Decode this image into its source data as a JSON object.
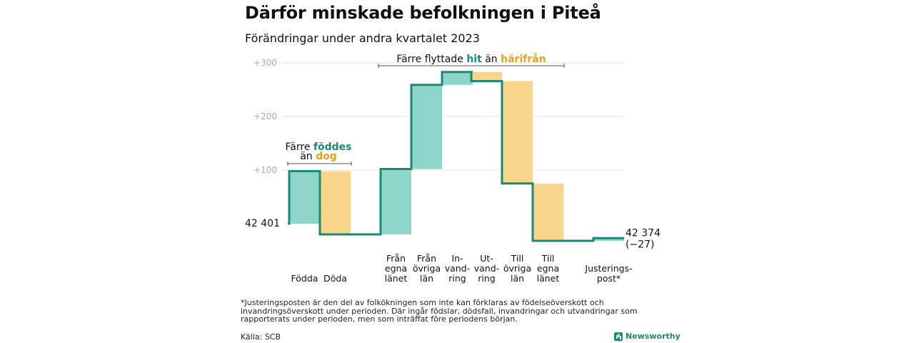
{
  "title": "Därför minskade befolkningen i Piteå",
  "subtitle": "Förändringar under andra kvartalet 2023",
  "colors": {
    "increase": "#8dd5c9",
    "decrease": "#f9d58c",
    "line": "#1a8a74",
    "teal_text": "#1a8a74",
    "orange_text": "#e8a21e",
    "grid": "#e3e3e3"
  },
  "chart_data": {
    "type": "waterfall",
    "title": "Därför minskade befolkningen i Piteå",
    "subtitle": "Förändringar under andra kvartalet 2023",
    "start_label": "42  401",
    "start_value": 42401,
    "end_label": "42 374",
    "end_change_label": "(−27)",
    "end_value": 42374,
    "y_axis": {
      "range": [
        -30,
        300
      ],
      "ticks": [
        100,
        200,
        300
      ],
      "tick_labels": [
        "+100",
        "+200",
        "+300"
      ],
      "grid": true
    },
    "steps": [
      {
        "label": "Födda",
        "change": 98,
        "kind": "increase"
      },
      {
        "label": "Döda",
        "change": -118,
        "kind": "decrease"
      },
      {
        "label": "Från egna länet",
        "change": 122,
        "kind": "increase"
      },
      {
        "label": "Från övriga län",
        "change": 157,
        "kind": "increase"
      },
      {
        "label": "In- vand- ring",
        "change": 24,
        "kind": "increase"
      },
      {
        "label": "Ut- vand- ring",
        "change": -17,
        "kind": "decrease"
      },
      {
        "label": "Till övriga län",
        "change": -191,
        "kind": "decrease"
      },
      {
        "label": "Till egna länet",
        "change": -107,
        "kind": "decrease"
      },
      {
        "label": "Justerings- post*",
        "change": 5,
        "kind": "increase"
      }
    ],
    "annotations": [
      {
        "id": "birth",
        "text_parts": [
          "Färre ",
          "föddes"
        ],
        "text_parts_2": [
          "än ",
          "dog"
        ]
      },
      {
        "id": "migration",
        "text_parts": [
          "Färre flyttade ",
          "hit",
          " än ",
          "härifrån"
        ]
      }
    ]
  },
  "footnote": "*Justeringsposten är den del av folkökningen som inte kan förklaras av födelseöverskott och invandringsöverskott under perioden. Där ingår födslar, dödsfall, invandringar och utvandringar som rapporterats under perioden, men som inträffat före periodens början.",
  "source": "Källa: SCB",
  "brand": "Newsworthy"
}
